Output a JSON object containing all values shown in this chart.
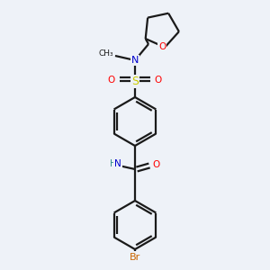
{
  "background_color": "#eef2f8",
  "bond_color": "#1a1a1a",
  "atom_colors": {
    "O": "#ff0000",
    "N": "#0000cc",
    "S": "#cccc00",
    "Br": "#cc6600",
    "H": "#2a8a8a",
    "C": "#1a1a1a"
  },
  "figsize": [
    3.0,
    3.0
  ],
  "dpi": 100,
  "lw": 1.6
}
